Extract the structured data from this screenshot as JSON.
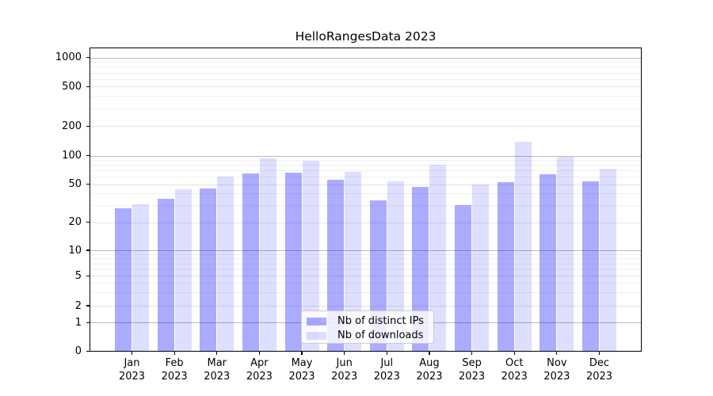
{
  "title": "HelloRangesData 2023",
  "y_axis": {
    "tick_labels": [
      "1000",
      "500",
      "200",
      "100",
      "50",
      "20",
      "10",
      "5",
      "2",
      "1",
      "0"
    ]
  },
  "x_axis": {
    "year": "2023",
    "months": [
      "Jan",
      "Feb",
      "Mar",
      "Apr",
      "May",
      "Jun",
      "Jul",
      "Aug",
      "Sep",
      "Oct",
      "Nov",
      "Dec"
    ]
  },
  "legend": {
    "items": [
      {
        "label": "Nb of distinct IPs",
        "color": "rgba(0,0,255,0.33)"
      },
      {
        "label": "Nb of downloads",
        "color": "rgba(0,0,255,0.13)"
      }
    ]
  },
  "chart_data": {
    "type": "bar",
    "title": "HelloRangesData 2023",
    "categories": [
      "Jan 2023",
      "Feb 2023",
      "Mar 2023",
      "Apr 2023",
      "May 2023",
      "Jun 2023",
      "Jul 2023",
      "Aug 2023",
      "Sep 2023",
      "Oct 2023",
      "Nov 2023",
      "Dec 2023"
    ],
    "series": [
      {
        "name": "Nb of distinct IPs",
        "color": "rgba(0,0,255,0.33)",
        "color_hex": "#ababfd",
        "values": [
          28,
          35,
          45,
          65,
          66,
          56,
          34,
          47,
          30,
          53,
          64,
          54
        ]
      },
      {
        "name": "Nb of downloads",
        "color": "rgba(0,0,255,0.13)",
        "color_hex": "#dddDfa",
        "values": [
          31,
          44,
          60,
          93,
          88,
          67,
          54,
          80,
          50,
          139,
          97,
          73
        ]
      }
    ],
    "yscale": "symlog",
    "yticks": [
      0,
      1,
      2,
      5,
      10,
      20,
      50,
      100,
      200,
      500,
      1000
    ],
    "ylim": [
      0,
      1265
    ],
    "grid": true,
    "legend_position": "lower center"
  }
}
